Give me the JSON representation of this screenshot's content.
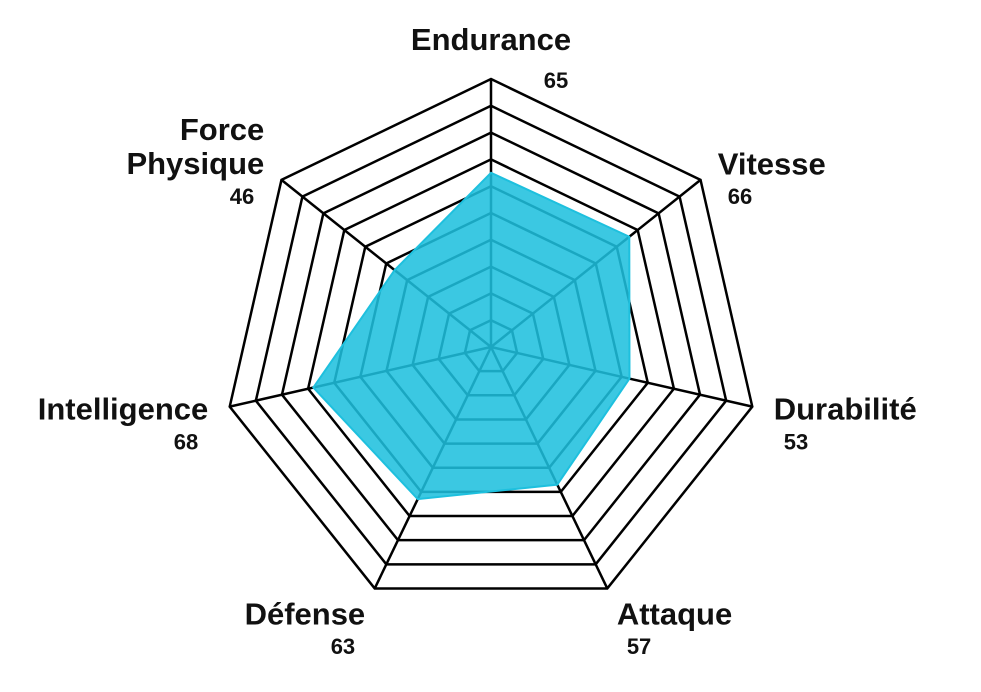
{
  "chart_data": {
    "type": "radar",
    "categories": [
      "Endurance",
      "Vitesse",
      "Durabilité",
      "Attaque",
      "Défense",
      "Intelligence",
      "Force Physique"
    ],
    "values": [
      65,
      66,
      53,
      57,
      63,
      68,
      46
    ],
    "color": "#1ec0de",
    "ylim": [
      0,
      100
    ],
    "yticks": [
      10,
      20,
      30,
      40,
      50,
      60,
      70,
      80,
      90,
      100
    ]
  }
}
